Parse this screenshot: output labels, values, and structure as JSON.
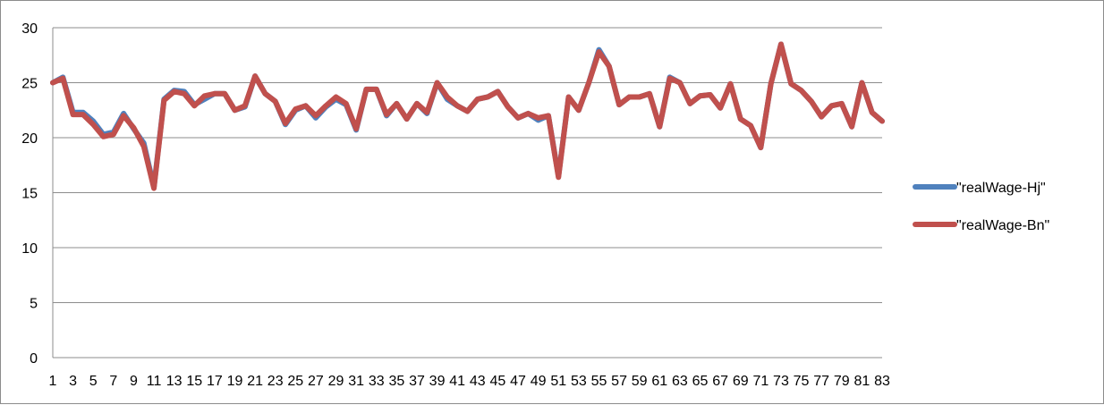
{
  "chart_data": {
    "type": "line",
    "categories": [
      "1",
      "2",
      "3",
      "4",
      "5",
      "6",
      "7",
      "8",
      "9",
      "10",
      "11",
      "12",
      "13",
      "14",
      "15",
      "16",
      "17",
      "18",
      "19",
      "20",
      "21",
      "22",
      "23",
      "24",
      "25",
      "26",
      "27",
      "28",
      "29",
      "30",
      "31",
      "32",
      "33",
      "34",
      "35",
      "36",
      "37",
      "38",
      "39",
      "40",
      "41",
      "42",
      "43",
      "44",
      "45",
      "46",
      "47",
      "48",
      "49",
      "50",
      "51",
      "52",
      "53",
      "54",
      "55",
      "56",
      "57",
      "58",
      "59",
      "60",
      "61",
      "62",
      "63",
      "64",
      "65",
      "66",
      "67",
      "68",
      "69",
      "70",
      "71",
      "72",
      "73",
      "74",
      "75",
      "76",
      "77",
      "78",
      "79",
      "80",
      "81",
      "82",
      "83"
    ],
    "x_tick_labels": [
      "1",
      "3",
      "5",
      "7",
      "9",
      "11",
      "13",
      "15",
      "17",
      "19",
      "21",
      "23",
      "25",
      "27",
      "29",
      "31",
      "33",
      "35",
      "37",
      "39",
      "41",
      "43",
      "45",
      "47",
      "49",
      "51",
      "53",
      "55",
      "57",
      "59",
      "61",
      "63",
      "65",
      "67",
      "69",
      "71",
      "73",
      "75",
      "77",
      "79",
      "81",
      "83"
    ],
    "ylim": [
      0,
      30
    ],
    "y_ticks": [
      "0",
      "5",
      "10",
      "15",
      "20",
      "25",
      "30"
    ],
    "grid": true,
    "legend_position": "right",
    "series": [
      {
        "name": "\"realWage-Hj\"",
        "color": "#4f81bd",
        "values": [
          25.0,
          25.5,
          22.3,
          22.3,
          21.5,
          20.3,
          20.5,
          22.2,
          20.8,
          19.5,
          15.5,
          23.5,
          24.3,
          24.2,
          23.0,
          23.5,
          24.0,
          24.0,
          22.5,
          22.8,
          25.6,
          24.0,
          23.3,
          21.2,
          22.5,
          22.9,
          21.8,
          22.8,
          23.5,
          23.0,
          20.7,
          24.4,
          24.4,
          22.0,
          23.1,
          21.7,
          23.1,
          22.2,
          25.0,
          23.5,
          22.9,
          22.4,
          23.5,
          23.7,
          24.2,
          22.8,
          21.8,
          22.2,
          21.6,
          22.0,
          16.5,
          23.7,
          22.5,
          25.0,
          28.0,
          26.5,
          23.0,
          23.7,
          23.7,
          24.0,
          21.0,
          25.5,
          25.0,
          23.1,
          23.8,
          23.9,
          22.7,
          24.9,
          21.7,
          21.1,
          19.1,
          24.9,
          28.5,
          24.9,
          24.3,
          23.3,
          21.9,
          22.9,
          23.1,
          21.0,
          25.0,
          22.3,
          21.5
        ]
      },
      {
        "name": "\"realWage-Bn\"",
        "color": "#c0504d",
        "values": [
          25.0,
          25.4,
          22.1,
          22.1,
          21.2,
          20.1,
          20.3,
          22.0,
          20.9,
          19.2,
          15.4,
          23.4,
          24.2,
          24.0,
          22.9,
          23.8,
          24.0,
          24.0,
          22.5,
          22.9,
          25.6,
          24.0,
          23.3,
          21.3,
          22.6,
          22.9,
          22.0,
          22.9,
          23.7,
          23.1,
          20.8,
          24.4,
          24.4,
          22.1,
          23.1,
          21.7,
          23.1,
          22.3,
          25.0,
          23.7,
          22.9,
          22.4,
          23.5,
          23.7,
          24.2,
          22.8,
          21.8,
          22.2,
          21.8,
          22.0,
          16.4,
          23.7,
          22.5,
          25.0,
          27.8,
          26.5,
          23.0,
          23.7,
          23.7,
          24.0,
          21.0,
          25.4,
          25.0,
          23.1,
          23.8,
          23.9,
          22.7,
          24.9,
          21.7,
          21.1,
          19.1,
          24.9,
          28.5,
          24.9,
          24.3,
          23.3,
          21.9,
          22.9,
          23.1,
          21.0,
          25.0,
          22.3,
          21.5
        ]
      }
    ]
  }
}
